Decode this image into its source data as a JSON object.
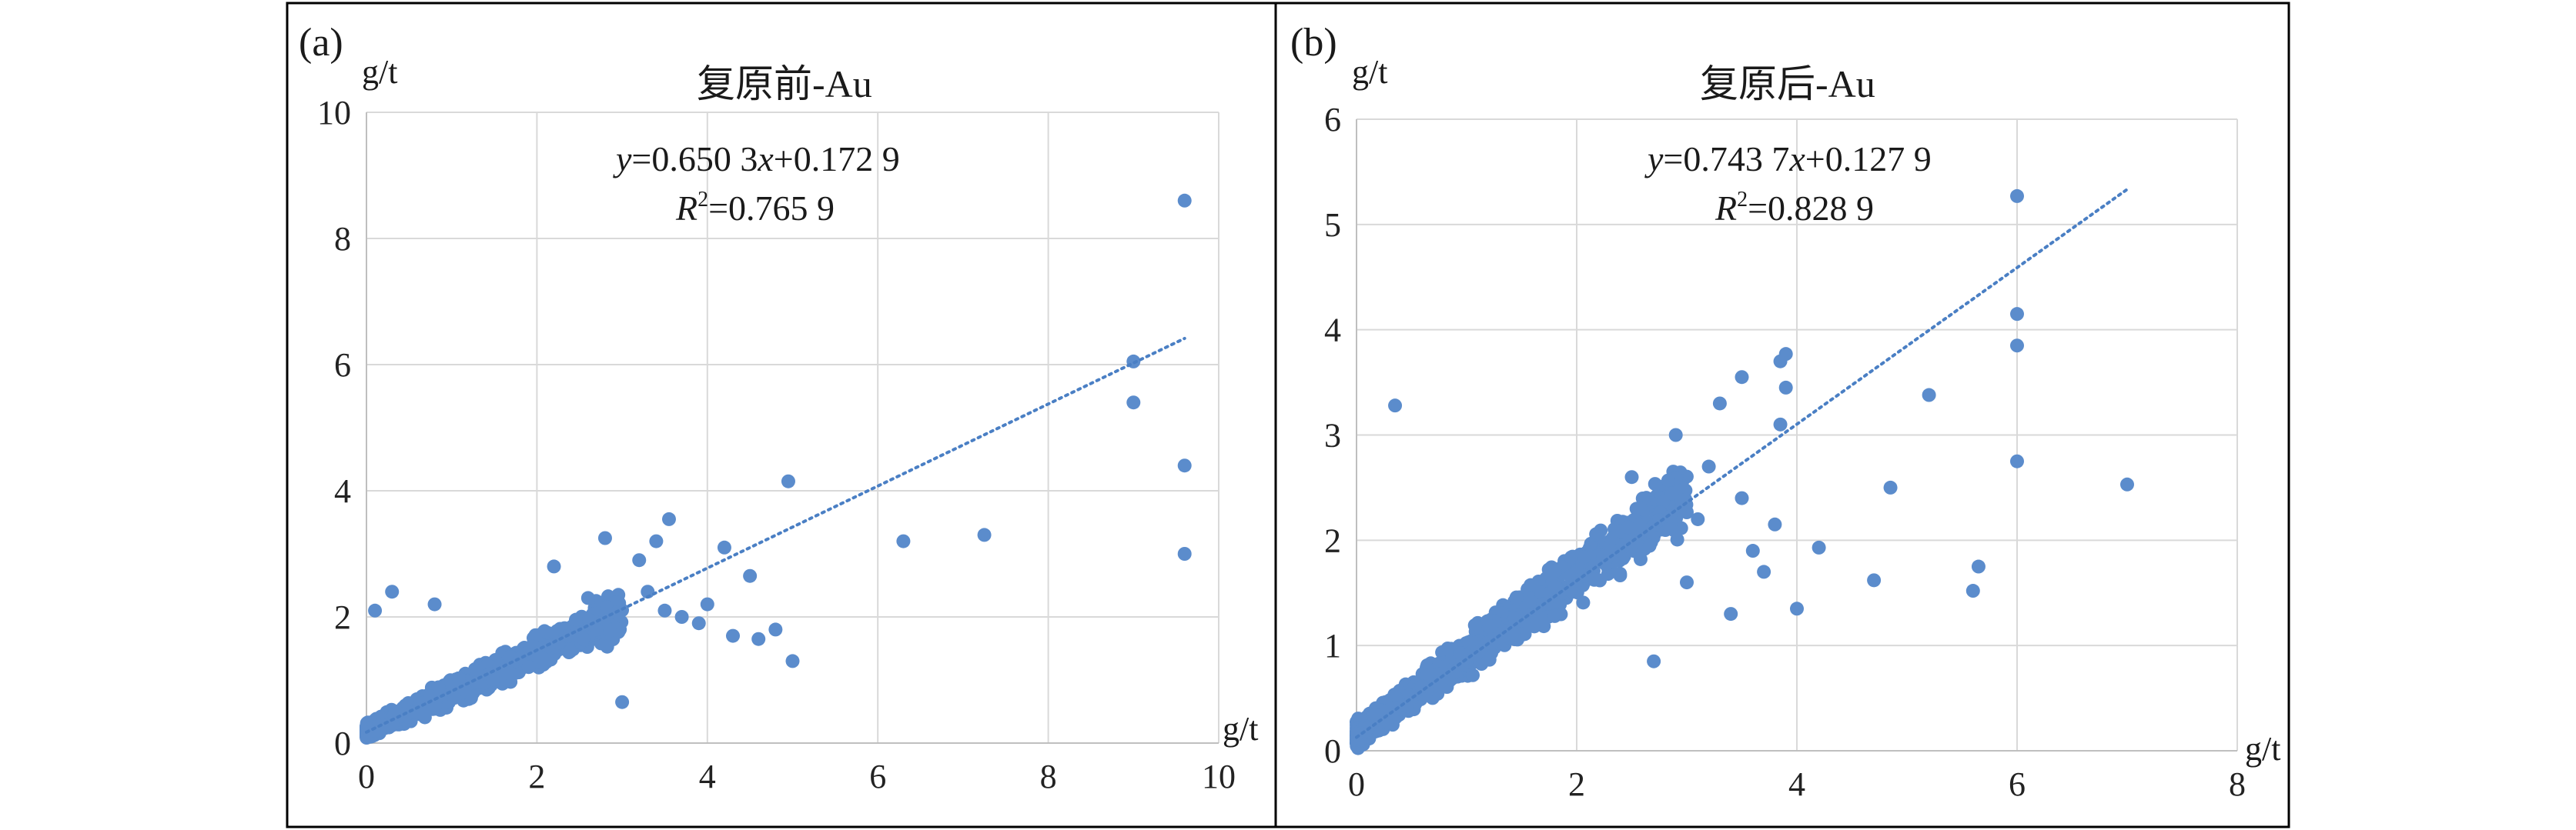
{
  "chart_data": [
    {
      "type": "scatter",
      "panel_label": "(a)",
      "title": "复原前-Au",
      "xlabel": "g/t",
      "ylabel": "g/t",
      "xlim": [
        0,
        10
      ],
      "ylim": [
        0,
        10
      ],
      "xticks": [
        "0",
        "2",
        "4",
        "6",
        "8",
        "10"
      ],
      "yticks": [
        "0",
        "2",
        "4",
        "6",
        "8",
        "10"
      ],
      "equation": {
        "y": "y",
        "eq": "=0.650 3",
        "x": "x",
        "rest": "+0.172 9"
      },
      "r2": {
        "R": "R",
        "sup": "2",
        "rest": "=0.765 9"
      },
      "trendline": {
        "slope": 0.6503,
        "intercept": 0.1729,
        "x_range": [
          0,
          9.6
        ],
        "style": "dotted"
      },
      "marker_color": "#5b8ccc",
      "points": [
        [
          9.6,
          8.6
        ],
        [
          9.0,
          6.05
        ],
        [
          9.0,
          5.4
        ],
        [
          9.6,
          4.4
        ],
        [
          9.6,
          3.0
        ],
        [
          4.95,
          4.15
        ],
        [
          6.3,
          3.2
        ],
        [
          7.25,
          3.3
        ],
        [
          5.0,
          1.3
        ],
        [
          4.8,
          1.8
        ],
        [
          4.5,
          2.65
        ],
        [
          4.2,
          3.1
        ],
        [
          3.55,
          3.55
        ],
        [
          3.7,
          2.0
        ],
        [
          4.3,
          1.7
        ],
        [
          4.0,
          2.2
        ],
        [
          4.6,
          1.65
        ],
        [
          3.9,
          1.9
        ],
        [
          3.4,
          3.2
        ],
        [
          3.0,
          0.65
        ],
        [
          2.2,
          2.8
        ],
        [
          2.8,
          3.25
        ],
        [
          0.3,
          2.4
        ],
        [
          0.1,
          2.1
        ],
        [
          0.8,
          2.2
        ],
        [
          3.2,
          2.9
        ],
        [
          3.3,
          2.4
        ],
        [
          2.6,
          2.3
        ],
        [
          2.7,
          1.8
        ],
        [
          3.5,
          2.1
        ]
      ],
      "cloud": {
        "count": 1100,
        "x_max": 3.0,
        "slope": 0.62,
        "intercept": 0.2,
        "spread": 0.32,
        "seed": 7
      }
    },
    {
      "type": "scatter",
      "panel_label": "(b)",
      "title": "复原后-Au",
      "xlabel": "g/t",
      "ylabel": "g/t",
      "xlim": [
        0,
        8
      ],
      "ylim": [
        0,
        6
      ],
      "xticks": [
        "0",
        "2",
        "4",
        "6",
        "8"
      ],
      "yticks": [
        "0",
        "1",
        "2",
        "3",
        "4",
        "5",
        "6"
      ],
      "equation": {
        "y": "y",
        "eq": "=0.743 7",
        "x": "x",
        "rest": "+0.127 9"
      },
      "r2": {
        "R": "R",
        "sup": "2",
        "rest": "=0.828 9"
      },
      "trendline": {
        "slope": 0.7437,
        "intercept": 0.1279,
        "x_range": [
          0,
          7.0
        ],
        "style": "dotted"
      },
      "marker_color": "#5b8ccc",
      "points": [
        [
          6.0,
          5.27
        ],
        [
          6.0,
          4.15
        ],
        [
          6.0,
          3.85
        ],
        [
          6.0,
          2.75
        ],
        [
          7.0,
          2.53
        ],
        [
          5.2,
          3.38
        ],
        [
          4.85,
          2.5
        ],
        [
          5.65,
          1.75
        ],
        [
          5.6,
          1.52
        ],
        [
          4.7,
          1.62
        ],
        [
          4.2,
          1.93
        ],
        [
          4.0,
          1.35
        ],
        [
          3.9,
          3.77
        ],
        [
          3.85,
          3.7
        ],
        [
          3.9,
          3.45
        ],
        [
          3.5,
          3.55
        ],
        [
          3.3,
          3.3
        ],
        [
          0.35,
          3.28
        ],
        [
          3.8,
          2.15
        ],
        [
          3.6,
          1.9
        ],
        [
          3.4,
          1.3
        ],
        [
          3.0,
          1.6
        ],
        [
          2.9,
          3.0
        ],
        [
          3.2,
          2.7
        ],
        [
          2.5,
          2.6
        ],
        [
          3.7,
          1.7
        ],
        [
          3.5,
          2.4
        ],
        [
          3.85,
          3.1
        ],
        [
          3.1,
          2.2
        ],
        [
          2.7,
          0.85
        ]
      ],
      "cloud": {
        "count": 1200,
        "x_max": 3.0,
        "slope": 0.76,
        "intercept": 0.15,
        "spread": 0.3,
        "seed": 11
      }
    }
  ]
}
